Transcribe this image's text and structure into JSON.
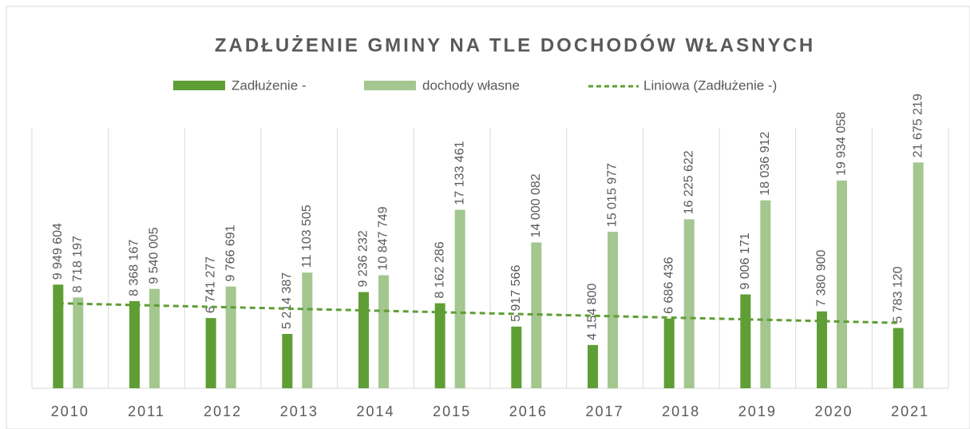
{
  "chart_data": {
    "type": "bar",
    "title": "ZADŁUŻENIE GMINY NA TLE DOCHODÓW WŁASNYCH",
    "categories": [
      "2010",
      "2011",
      "2012",
      "2013",
      "2014",
      "2015",
      "2016",
      "2017",
      "2018",
      "2019",
      "2020",
      "2021"
    ],
    "series": [
      {
        "name": "Zadłużenie -",
        "color": "#5f9e35",
        "values": [
          9949604,
          8368167,
          6741277,
          5214387,
          9236232,
          8162286,
          5917566,
          4154800,
          6686436,
          9006171,
          7380900,
          5783120
        ],
        "value_labels": [
          "9 949 604",
          "8 368 167",
          "6 741 277",
          "5 214 387",
          "9 236 232",
          "8 162 286",
          "5 917 566",
          "4 154 800",
          "6 686 436",
          "9 006 171",
          "7 380 900",
          "5 783 120"
        ]
      },
      {
        "name": "dochody własne",
        "color": "#a3c78f",
        "values": [
          8718197,
          9540005,
          9766691,
          11103505,
          10847749,
          17133461,
          14000082,
          15015977,
          16225622,
          18036912,
          19934058,
          21675219
        ],
        "value_labels": [
          "8 718 197",
          "9 540 005",
          "9 766 691",
          "11 103 505",
          "10 847 749",
          "17 133 461",
          "14 000 082",
          "15 015 977",
          "16 225 622",
          "18 036 912",
          "19 934 058",
          "21 675 219"
        ]
      }
    ],
    "trendline": {
      "name": "Liniowa (Zadłużenie -)",
      "color": "#5f9e35",
      "style": "dashed"
    },
    "ylim": [
      0,
      25000000
    ]
  }
}
